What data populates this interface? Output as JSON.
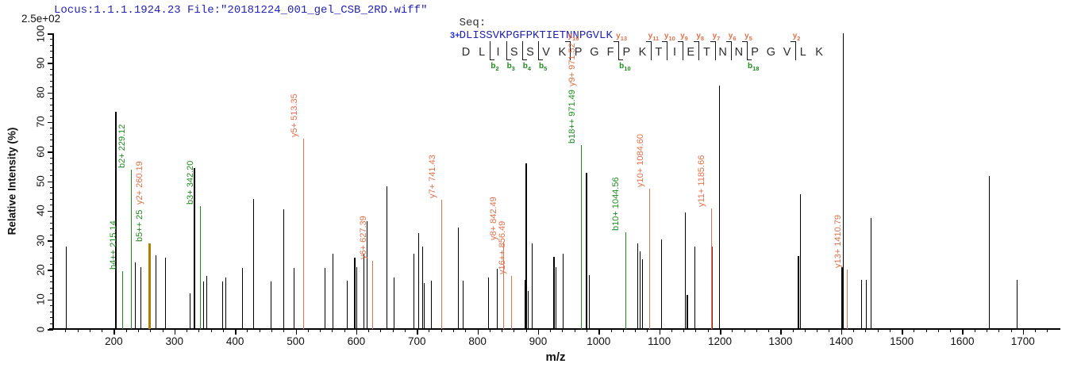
{
  "header": {
    "locus_file": "Locus:1.1.1.1924.23 File:\"20181224_001_gel_CSB_2RD.wiff\"",
    "seq_label": "Seq:",
    "seq_value": "DLISSVKPGFPKTIETNNPGVLK",
    "intensity_scale": "2.5e+02"
  },
  "sequence_panel": {
    "charge": "3+",
    "residues": [
      "D",
      "L",
      "I",
      "S",
      "S",
      "V",
      "K",
      "P",
      "G",
      "F",
      "P",
      "K",
      "T",
      "I",
      "E",
      "T",
      "N",
      "N",
      "P",
      "G",
      "V",
      "L",
      "K"
    ],
    "y_markers": [
      {
        "label": "y16",
        "gap": 6
      },
      {
        "label": "y13",
        "gap": 9
      },
      {
        "label": "y11",
        "gap": 11
      },
      {
        "label": "y10",
        "gap": 12
      },
      {
        "label": "y9",
        "gap": 13
      },
      {
        "label": "y8",
        "gap": 14
      },
      {
        "label": "y7",
        "gap": 15
      },
      {
        "label": "y6",
        "gap": 16
      },
      {
        "label": "y5",
        "gap": 17
      },
      {
        "label": "y2",
        "gap": 20
      }
    ],
    "b_markers": [
      {
        "label": "b2",
        "gap": 1
      },
      {
        "label": "b3",
        "gap": 2
      },
      {
        "label": "b4",
        "gap": 3
      },
      {
        "label": "b5",
        "gap": 4
      },
      {
        "label": "b10",
        "gap": 9
      },
      {
        "label": "b18",
        "gap": 17
      }
    ]
  },
  "colors": {
    "b_ion": "#1f8c1f",
    "y_ion": "#e0714a",
    "overlap": "#b08000",
    "dark_red": "#8b2020",
    "peak": "#000000",
    "header_text": "#2424b0",
    "seq_label_text": "#333333",
    "charge": "#2233dd"
  },
  "chart_data": {
    "type": "bar",
    "subtype": "ms2-stick-spectrum",
    "xlabel": "m/z",
    "ylabel": "Relative Intensity (%)",
    "x_range": [
      100,
      1754
    ],
    "y_range": [
      0,
      100
    ],
    "x_ticks": [
      200,
      300,
      400,
      500,
      600,
      700,
      800,
      900,
      1000,
      1100,
      1200,
      1300,
      1400,
      1500,
      1600,
      1700
    ],
    "x_minor_step": 20,
    "y_ticks": [
      0,
      10,
      20,
      30,
      40,
      50,
      60,
      70,
      80,
      90,
      100
    ],
    "y_minor_step": 2,
    "grid": false,
    "peaks": [
      {
        "mz": 121,
        "h": 28,
        "c": "k"
      },
      {
        "mz": 203,
        "h": 73.5,
        "c": "k",
        "w": 2
      },
      {
        "mz": 215.14,
        "h": 19.6,
        "c": "b"
      },
      {
        "mz": 229.12,
        "h": 54,
        "c": "b"
      },
      {
        "mz": 235,
        "h": 22.5,
        "c": "k"
      },
      {
        "mz": 244,
        "h": 21,
        "c": "k"
      },
      {
        "mz": 258.6,
        "h": 29,
        "c": "o",
        "w": 3
      },
      {
        "mz": 269,
        "h": 25,
        "c": "k"
      },
      {
        "mz": 285,
        "h": 24,
        "c": "k"
      },
      {
        "mz": 326,
        "h": 12,
        "c": "k"
      },
      {
        "mz": 333,
        "h": 54.5,
        "c": "k",
        "w": 2
      },
      {
        "mz": 342.2,
        "h": 41.5,
        "c": "b"
      },
      {
        "mz": 348,
        "h": 16,
        "c": "k"
      },
      {
        "mz": 353,
        "h": 18,
        "c": "k"
      },
      {
        "mz": 379,
        "h": 16,
        "c": "k"
      },
      {
        "mz": 385,
        "h": 17.5,
        "c": "k"
      },
      {
        "mz": 412,
        "h": 20.6,
        "c": "k"
      },
      {
        "mz": 430,
        "h": 44,
        "c": "k"
      },
      {
        "mz": 459,
        "h": 16,
        "c": "k"
      },
      {
        "mz": 480,
        "h": 40.5,
        "c": "k"
      },
      {
        "mz": 497,
        "h": 20.6,
        "c": "k"
      },
      {
        "mz": 513.35,
        "h": 64.3,
        "c": "y"
      },
      {
        "mz": 549,
        "h": 20.6,
        "c": "k"
      },
      {
        "mz": 561,
        "h": 25.5,
        "c": "k"
      },
      {
        "mz": 585,
        "h": 16.4,
        "c": "k"
      },
      {
        "mz": 597,
        "h": 24,
        "c": "k",
        "w": 2
      },
      {
        "mz": 601,
        "h": 21,
        "c": "k"
      },
      {
        "mz": 612,
        "h": 25.4,
        "c": "k"
      },
      {
        "mz": 618,
        "h": 36.4,
        "c": "k"
      },
      {
        "mz": 627.39,
        "h": 23,
        "c": "y"
      },
      {
        "mz": 651,
        "h": 48.2,
        "c": "k"
      },
      {
        "mz": 662,
        "h": 17.4,
        "c": "k"
      },
      {
        "mz": 695,
        "h": 25.5,
        "c": "k"
      },
      {
        "mz": 703,
        "h": 32.4,
        "c": "k"
      },
      {
        "mz": 709,
        "h": 28,
        "c": "k"
      },
      {
        "mz": 712,
        "h": 15.5,
        "c": "k"
      },
      {
        "mz": 724,
        "h": 16.4,
        "c": "k"
      },
      {
        "mz": 741.43,
        "h": 43.7,
        "c": "y"
      },
      {
        "mz": 768,
        "h": 34.3,
        "c": "k"
      },
      {
        "mz": 776,
        "h": 16.4,
        "c": "k"
      },
      {
        "mz": 818,
        "h": 17.4,
        "c": "k"
      },
      {
        "mz": 832,
        "h": 20.4,
        "c": "k"
      },
      {
        "mz": 842.49,
        "h": 29.5,
        "c": "y"
      },
      {
        "mz": 856.49,
        "h": 18,
        "c": "y"
      },
      {
        "mz": 878,
        "h": 16.6,
        "c": "k"
      },
      {
        "mz": 881,
        "h": 56,
        "c": "k",
        "w": 2
      },
      {
        "mz": 884,
        "h": 13,
        "c": "k"
      },
      {
        "mz": 890,
        "h": 29,
        "c": "k"
      },
      {
        "mz": 926,
        "h": 24.4,
        "c": "k",
        "w": 2
      },
      {
        "mz": 929,
        "h": 21,
        "c": "k"
      },
      {
        "mz": 941,
        "h": 25.5,
        "c": "k"
      },
      {
        "mz": 971.49,
        "h": 62.2,
        "c": "b"
      },
      {
        "mz": 980,
        "h": 52.8,
        "c": "k",
        "w": 2
      },
      {
        "mz": 985,
        "h": 18.3,
        "c": "k"
      },
      {
        "mz": 1044.56,
        "h": 32.7,
        "c": "b"
      },
      {
        "mz": 1065,
        "h": 29,
        "c": "k"
      },
      {
        "mz": 1069,
        "h": 26.3,
        "c": "k"
      },
      {
        "mz": 1072,
        "h": 23.6,
        "c": "k"
      },
      {
        "mz": 1084.6,
        "h": 47.5,
        "c": "y"
      },
      {
        "mz": 1104,
        "h": 30.3,
        "c": "k"
      },
      {
        "mz": 1143,
        "h": 39.4,
        "c": "k"
      },
      {
        "mz": 1146,
        "h": 11.5,
        "c": "k",
        "w": 2
      },
      {
        "mz": 1159,
        "h": 28,
        "c": "k"
      },
      {
        "mz": 1185.66,
        "h": 40.7,
        "c": "y"
      },
      {
        "mz": 1188,
        "h": 28,
        "c": "r"
      },
      {
        "mz": 1199,
        "h": 82.3,
        "c": "k"
      },
      {
        "mz": 1330,
        "h": 24.7,
        "c": "k",
        "w": 2
      },
      {
        "mz": 1333,
        "h": 45.6,
        "c": "k"
      },
      {
        "mz": 1401,
        "h": 21,
        "c": "k",
        "w": 2
      },
      {
        "mz": 1404,
        "h": 100,
        "c": "k"
      },
      {
        "mz": 1410.79,
        "h": 20,
        "c": "y"
      },
      {
        "mz": 1434,
        "h": 16.6,
        "c": "k"
      },
      {
        "mz": 1442,
        "h": 16.6,
        "c": "k"
      },
      {
        "mz": 1450,
        "h": 37.5,
        "c": "k"
      },
      {
        "mz": 1645,
        "h": 51.7,
        "c": "k"
      },
      {
        "mz": 1690,
        "h": 16.6,
        "c": "k"
      }
    ],
    "peak_labels": [
      {
        "text": "b4++ 215.14",
        "mz": 215.14,
        "h": 19.6,
        "c": "b"
      },
      {
        "text": "b2+ 229.12",
        "mz": 229.12,
        "h": 54,
        "c": "b"
      },
      {
        "text": "b5++ 25",
        "mz": 258.6,
        "h": 29,
        "c": "b"
      },
      {
        "text": "y2+ 260.19",
        "mz": 258.6,
        "h": 29,
        "c": "y",
        "lift": 47
      },
      {
        "text": "b3+ 342.20",
        "mz": 342.2,
        "h": 41.5,
        "c": "b"
      },
      {
        "text": "y5+ 513.35",
        "mz": 513.35,
        "h": 64.3,
        "c": "y"
      },
      {
        "text": "y6+ 627.39",
        "mz": 627.39,
        "h": 23,
        "c": "y"
      },
      {
        "text": "y7+ 741.43",
        "mz": 741.43,
        "h": 43.7,
        "c": "y"
      },
      {
        "text": "y8+ 842.49",
        "mz": 842.49,
        "h": 29.5,
        "c": "y"
      },
      {
        "text": "y16++ 856.49",
        "mz": 856.49,
        "h": 18,
        "c": "y"
      },
      {
        "text": "b18++ 971.49",
        "mz": 971.49,
        "h": 62.2,
        "c": "b"
      },
      {
        "text": "y9+ 971.52",
        "mz": 971.49,
        "h": 62.2,
        "c": "y",
        "lift": 72
      },
      {
        "text": "b10+ 1044.56",
        "mz": 1044.56,
        "h": 32.7,
        "c": "b"
      },
      {
        "text": "y10+ 1084.60",
        "mz": 1084.6,
        "h": 47.5,
        "c": "y"
      },
      {
        "text": "y11+ 1185.66",
        "mz": 1185.66,
        "h": 40.7,
        "c": "y"
      },
      {
        "text": "y13+ 1410.79",
        "mz": 1410.79,
        "h": 20,
        "c": "y"
      }
    ]
  }
}
